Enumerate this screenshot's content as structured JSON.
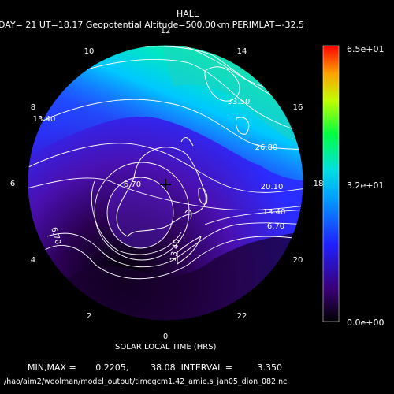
{
  "title": "HALL",
  "subtitle": "DAY= 21 UT=18.17 Geopotential Altitude=500.00km PERIMLAT=-32.5",
  "xlabel": "SOLAR LOCAL TIME (HRS)",
  "minmax_line": "MIN,MAX =       0.2205,        38.08  INTERVAL =         3.350",
  "file_path": "/hao/aim2/woolman/model_output/timegcm1.42_amie.s_jan05_dion_082.nc",
  "colorbar": {
    "top_label": "6.5e+01",
    "mid_label": "3.2e+01",
    "bottom_label": "0.0e+00"
  },
  "colors": {
    "background": "#000000",
    "contour": "#ffffff",
    "coast": "#ffffff"
  },
  "chart_data": {
    "type": "polar-contour",
    "variable": "HALL",
    "center_latitude": -90,
    "perimeter_latitude": -32.5,
    "value_range": [
      0.2205,
      38.08
    ],
    "contour_interval": 3.35,
    "colorbar_range": [
      0.0,
      65.0
    ],
    "local_time_ticks": [
      "12",
      "14",
      "16",
      "18",
      "20",
      "22",
      "0",
      "2",
      "4",
      "6",
      "8",
      "10"
    ],
    "contour_labels": [
      "33.50",
      "26.80",
      "20.10",
      "13.40",
      "6.70",
      "13.40",
      "6.70",
      "6.70",
      "13.40"
    ]
  }
}
